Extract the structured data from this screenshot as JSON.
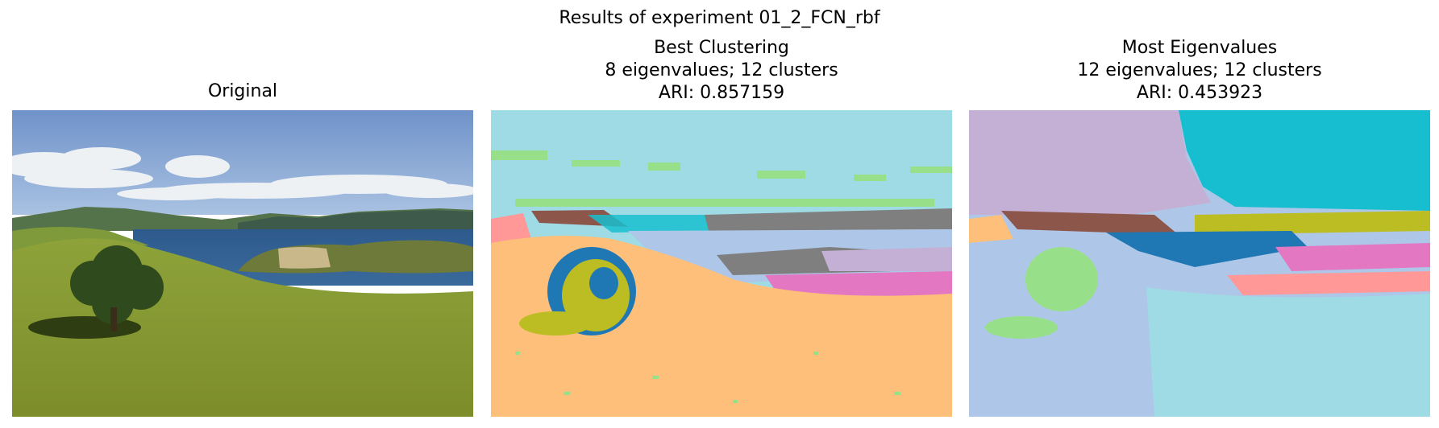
{
  "figure": {
    "suptitle": "Results of experiment 01_2_FCN_rbf"
  },
  "panels": [
    {
      "title_lines": [
        "Original"
      ],
      "content": "photograph"
    },
    {
      "title_lines": [
        "Best Clustering",
        "8 eigenvalues; 12 clusters",
        "ARI: 0.857159"
      ],
      "content": "segmentation map"
    },
    {
      "title_lines": [
        "Most Eigenvalues",
        "12 eigenvalues; 12 clusters",
        "ARI: 0.453923"
      ],
      "content": "segmentation map"
    }
  ],
  "colors": {
    "sky_cluster": "#9fdbe4",
    "foreground_cluster": "#fdbf79",
    "tree_blue": "#1f77b4",
    "tree_olive": "#bcbd22",
    "brown": "#8c564b",
    "gray": "#7f7f7f",
    "pink": "#e377c2",
    "lavender": "#c5b0d5",
    "light_blue": "#aec7e8",
    "light_green": "#98df8a",
    "light_red": "#ff9896",
    "cyan": "#17becf"
  }
}
